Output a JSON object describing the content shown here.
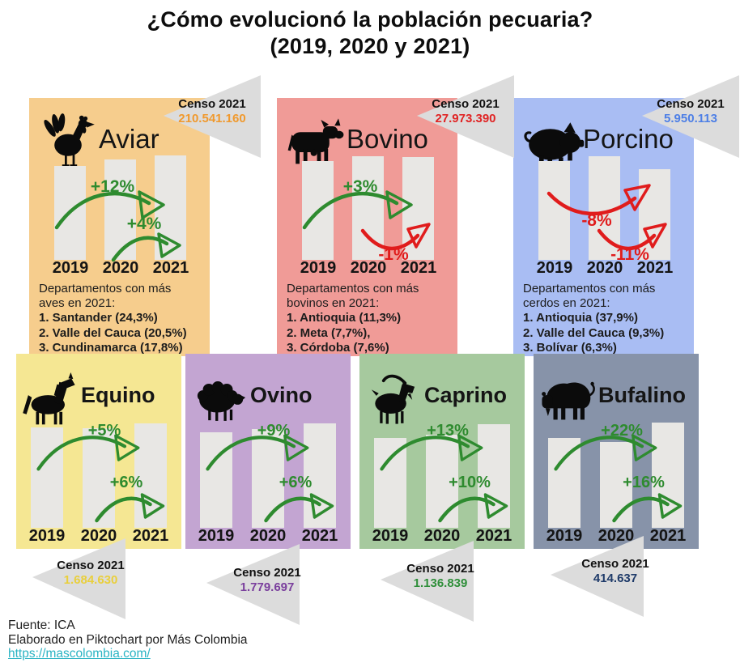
{
  "title": {
    "line1": "¿Cómo evolucionó la población pecuaria?",
    "line2": "(2019, 2020 y 2021)"
  },
  "years": [
    "2019",
    "2020",
    "2021"
  ],
  "censo_label": "Censo 2021",
  "colors": {
    "bar": "#e8e7e4",
    "triangle": "#dcdcdc",
    "positive_green": "#2e8b2f",
    "negative_red": "#e01c1c",
    "link_teal": "#2ab4c4"
  },
  "panels": [
    {
      "id": "aviar",
      "title": "Aviar",
      "icon": "rooster-icon",
      "bg": "#f6cd8d",
      "censo": "210.541.160",
      "censo_color": "#f0992d",
      "pct1": "+12%",
      "pct2": "+4%",
      "bars": [
        116,
        124,
        129
      ],
      "dept_intro": "Departamentos con más aves en 2021:",
      "depts": [
        "1. Santander (24,3%)",
        "2. Valle del Cauca (20,5%)",
        "3. Cundinamarca (17,8%)"
      ]
    },
    {
      "id": "bovino",
      "title": "Bovino",
      "icon": "cow-icon",
      "bg": "#f09b97",
      "censo": "27.973.390",
      "censo_color": "#e02424",
      "pct1": "+3%",
      "pct2": "-1%",
      "bars": [
        122,
        128,
        127
      ],
      "dept_intro": "Departamentos con más bovinos en 2021:",
      "depts": [
        "1. Antioquia (11,3%)",
        "2. Meta (7,7%),",
        "3. Córdoba (7,6%)"
      ]
    },
    {
      "id": "porcino",
      "title": "Porcino",
      "icon": "pig-icon",
      "bg": "#a9bdf3",
      "censo": "5.950.113",
      "censo_color": "#4d7fe6",
      "pct1": "-8%",
      "pct2": "-11%",
      "bars": [
        122,
        128,
        112
      ],
      "dept_intro": "Departamentos con más cerdos en 2021:",
      "depts": [
        "1. Antioquia (37,9%)",
        "2. Valle del Cauca (9,3%)",
        "3. Bolívar (6,3%)"
      ]
    },
    {
      "id": "equino",
      "title": "Equino",
      "icon": "horse-icon",
      "bg": "#f5e793",
      "censo": "1.684.630",
      "censo_color": "#e9cf3c",
      "pct1": "+5%",
      "pct2": "+6%",
      "bars": [
        124,
        123,
        129
      ]
    },
    {
      "id": "ovino",
      "title": "Ovino",
      "icon": "sheep-icon",
      "bg": "#c3a5d2",
      "censo": "1.779.697",
      "censo_color": "#7a3f9d",
      "pct1": "+9%",
      "pct2": "+6%",
      "bars": [
        118,
        122,
        129
      ]
    },
    {
      "id": "caprino",
      "title": "Caprino",
      "icon": "goat-icon",
      "bg": "#a6c99e",
      "censo": "1.136.839",
      "censo_color": "#2f8f3a",
      "pct1": "+13%",
      "pct2": "+10%",
      "bars": [
        111,
        115,
        128
      ]
    },
    {
      "id": "bufalino",
      "title": "Bufalino",
      "icon": "buffalo-icon",
      "bg": "#8793a9",
      "censo": "414.637",
      "censo_color": "#1e3a69",
      "pct1": "+22%",
      "pct2": "+16%",
      "bars": [
        111,
        106,
        130
      ]
    }
  ],
  "footer": {
    "source": "Fuente: ICA",
    "elaborated": "Elaborado en Piktochart por Más Colombia",
    "link": "https://mascolombia.com/"
  },
  "chart_data": [
    {
      "type": "bar",
      "species": "Aviar",
      "categories": [
        "2019",
        "2020",
        "2021"
      ],
      "census_2021": 210541160,
      "pct_change": {
        "2019_2020": 12,
        "2020_2021": 4
      },
      "top_departments_2021": [
        {
          "name": "Santander",
          "pct": 24.3
        },
        {
          "name": "Valle del Cauca",
          "pct": 20.5
        },
        {
          "name": "Cundinamarca",
          "pct": 17.8
        }
      ]
    },
    {
      "type": "bar",
      "species": "Bovino",
      "categories": [
        "2019",
        "2020",
        "2021"
      ],
      "census_2021": 27973390,
      "pct_change": {
        "2019_2020": 3,
        "2020_2021": -1
      },
      "top_departments_2021": [
        {
          "name": "Antioquia",
          "pct": 11.3
        },
        {
          "name": "Meta",
          "pct": 7.7
        },
        {
          "name": "Córdoba",
          "pct": 7.6
        }
      ]
    },
    {
      "type": "bar",
      "species": "Porcino",
      "categories": [
        "2019",
        "2020",
        "2021"
      ],
      "census_2021": 5950113,
      "pct_change": {
        "2019_2020": -8,
        "2020_2021": -11
      },
      "top_departments_2021": [
        {
          "name": "Antioquia",
          "pct": 37.9
        },
        {
          "name": "Valle del Cauca",
          "pct": 9.3
        },
        {
          "name": "Bolívar",
          "pct": 6.3
        }
      ]
    },
    {
      "type": "bar",
      "species": "Equino",
      "categories": [
        "2019",
        "2020",
        "2021"
      ],
      "census_2021": 1684630,
      "pct_change": {
        "2019_2020": 5,
        "2020_2021": 6
      }
    },
    {
      "type": "bar",
      "species": "Ovino",
      "categories": [
        "2019",
        "2020",
        "2021"
      ],
      "census_2021": 1779697,
      "pct_change": {
        "2019_2020": 9,
        "2020_2021": 6
      }
    },
    {
      "type": "bar",
      "species": "Caprino",
      "categories": [
        "2019",
        "2020",
        "2021"
      ],
      "census_2021": 1136839,
      "pct_change": {
        "2019_2020": 13,
        "2020_2021": 10
      }
    },
    {
      "type": "bar",
      "species": "Bufalino",
      "categories": [
        "2019",
        "2020",
        "2021"
      ],
      "census_2021": 414637,
      "pct_change": {
        "2019_2020": 22,
        "2020_2021": 16
      }
    }
  ]
}
